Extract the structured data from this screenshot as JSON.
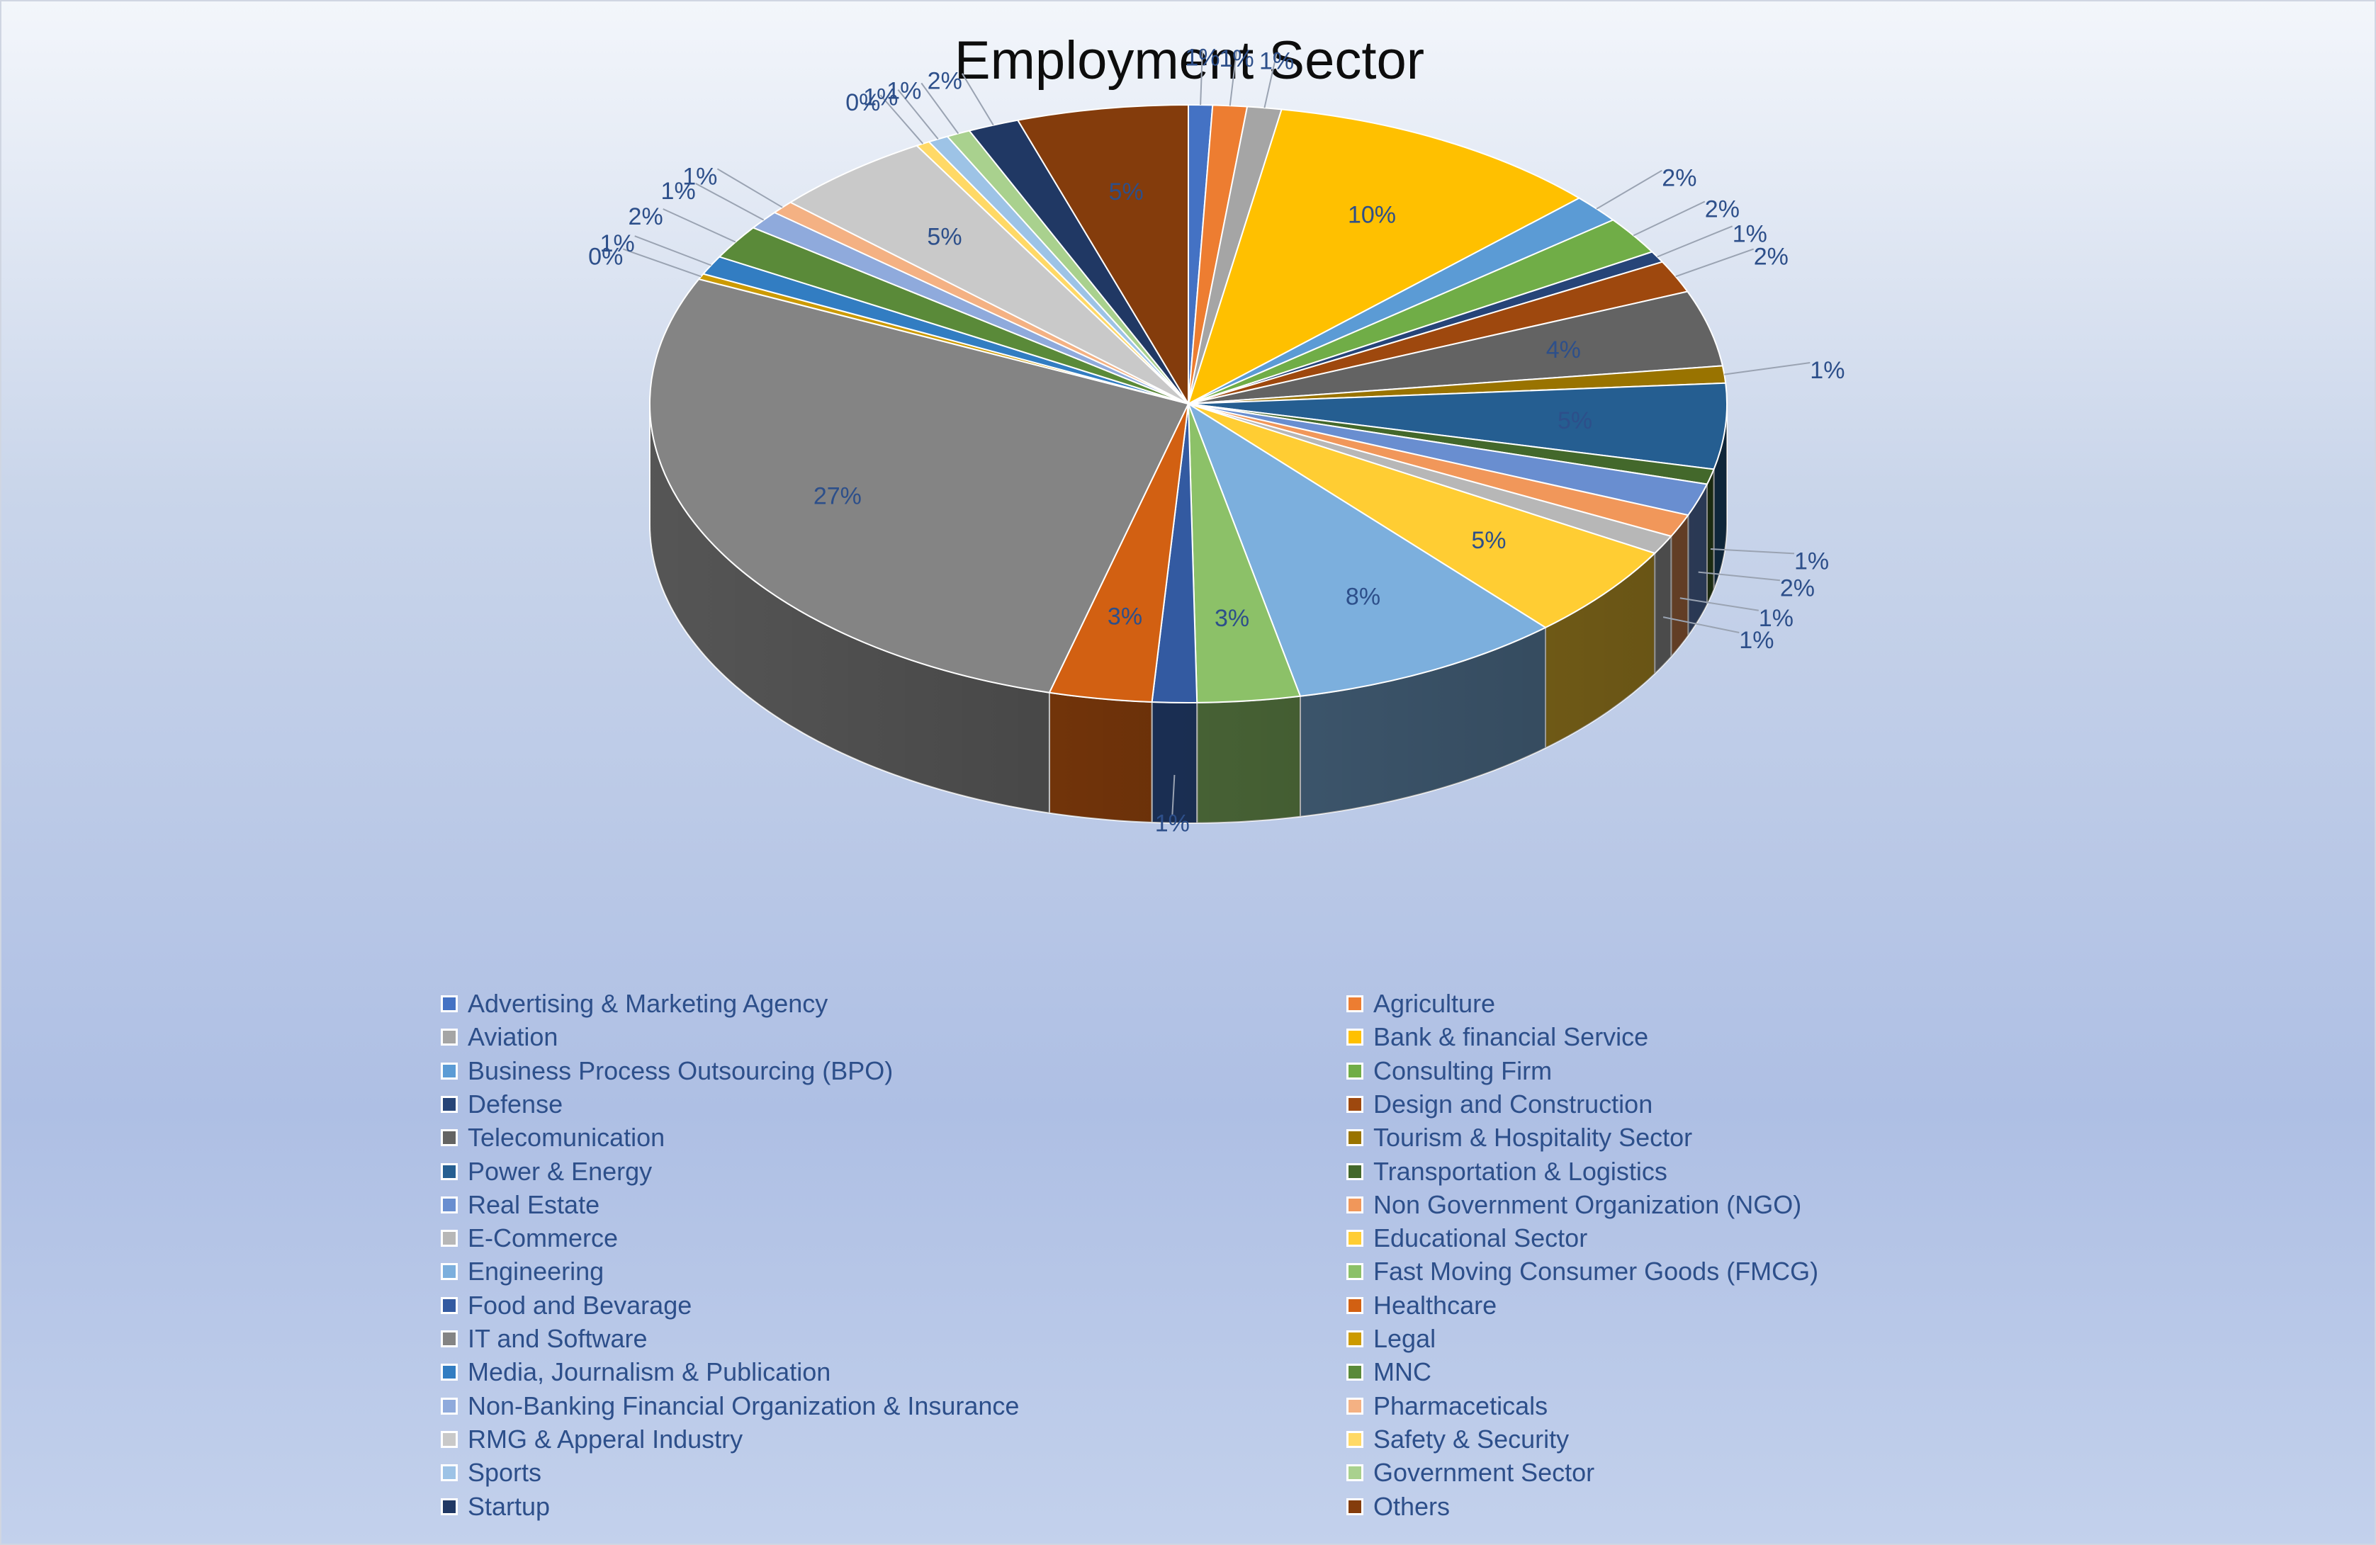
{
  "chart_data": {
    "type": "pie",
    "title": "Employment Sector",
    "legend_position": "bottom",
    "series": [
      {
        "name": "Advertising & Marketing Agency",
        "value": 0.7,
        "label": "1%",
        "color": "#4472c4"
      },
      {
        "name": "Agriculture",
        "value": 1.0,
        "label": "1%",
        "color": "#ed7d31"
      },
      {
        "name": "Aviation",
        "value": 1.0,
        "label": "1%",
        "color": "#a5a5a5"
      },
      {
        "name": "Bank & financial Service",
        "value": 9.9,
        "label": "10%",
        "color": "#ffc000"
      },
      {
        "name": "Business Process Outsourcing (BPO)",
        "value": 1.5,
        "label": "2%",
        "color": "#5b9bd5"
      },
      {
        "name": "Consulting Firm",
        "value": 2.0,
        "label": "2%",
        "color": "#70ad47"
      },
      {
        "name": "Defense",
        "value": 0.6,
        "label": "1%",
        "color": "#264478"
      },
      {
        "name": "Design and Construction",
        "value": 1.7,
        "label": "2%",
        "color": "#9e480e"
      },
      {
        "name": "Telecomunication",
        "value": 4.0,
        "label": "4%",
        "color": "#636363"
      },
      {
        "name": "Tourism & Hospitality Sector",
        "value": 0.9,
        "label": "1%",
        "color": "#997300"
      },
      {
        "name": "Power & Energy",
        "value": 4.5,
        "label": "5%",
        "color": "#255e91"
      },
      {
        "name": "Transportation & Logistics",
        "value": 0.8,
        "label": "1%",
        "color": "#43682b"
      },
      {
        "name": "Real Estate",
        "value": 1.7,
        "label": "2%",
        "color": "#698ed0"
      },
      {
        "name": "Non Government Organization (NGO)",
        "value": 1.2,
        "label": "1%",
        "color": "#f1975a"
      },
      {
        "name": "E-Commerce",
        "value": 1.0,
        "label": "1%",
        "color": "#b7b7b7"
      },
      {
        "name": "Educational Sector",
        "value": 5.0,
        "label": "5%",
        "color": "#ffcd33"
      },
      {
        "name": "Engineering",
        "value": 8.0,
        "label": "8%",
        "color": "#7cafdd"
      },
      {
        "name": "Fast Moving Consumer Goods (FMCG)",
        "value": 3.0,
        "label": "3%",
        "color": "#8cc168"
      },
      {
        "name": "Food and Bevarage",
        "value": 1.3,
        "label": "1%",
        "color": "#335aa1"
      },
      {
        "name": "Healthcare",
        "value": 3.0,
        "label": "3%",
        "color": "#d26012"
      },
      {
        "name": "IT and Software",
        "value": 27.0,
        "label": "27%",
        "color": "#848484"
      },
      {
        "name": "Legal",
        "value": 0.3,
        "label": "0%",
        "color": "#cc9a00"
      },
      {
        "name": "Media, Journalism & Publication",
        "value": 1.0,
        "label": "1%",
        "color": "#327dc2"
      },
      {
        "name": "MNC",
        "value": 1.8,
        "label": "2%",
        "color": "#5a8a39"
      },
      {
        "name": "Non-Banking Financial Organization & Insurance",
        "value": 1.0,
        "label": "1%",
        "color": "#8faadc"
      },
      {
        "name": "Pharmaceticals",
        "value": 0.7,
        "label": "1%",
        "color": "#f4b183"
      },
      {
        "name": "RMG & Apperal Industry",
        "value": 4.7,
        "label": "5%",
        "color": "#c9c9c9"
      },
      {
        "name": "Safety & Security",
        "value": 0.4,
        "label": "0%",
        "color": "#ffd966"
      },
      {
        "name": "Sports",
        "value": 0.6,
        "label": "1%",
        "color": "#9dc3e6"
      },
      {
        "name": "Government Sector",
        "value": 0.7,
        "label": "1%",
        "color": "#a9d18e"
      },
      {
        "name": "Startup",
        "value": 1.5,
        "label": "2%",
        "color": "#203864"
      },
      {
        "name": "Others",
        "value": 5.0,
        "label": "5%",
        "color": "#843c0c"
      }
    ]
  }
}
